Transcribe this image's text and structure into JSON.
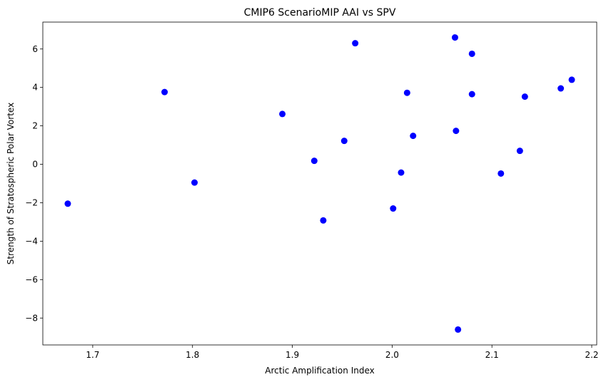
{
  "chart_data": {
    "type": "scatter",
    "title": "CMIP6 ScenarioMIP AAI vs SPV",
    "xlabel": "Arctic Amplification Index",
    "ylabel": "Strength of Stratospheric Polar Vortex",
    "xlim": [
      1.65,
      2.205
    ],
    "ylim": [
      -9.4,
      7.4
    ],
    "xticks": [
      1.7,
      1.8,
      1.9,
      2.0,
      2.1,
      2.2
    ],
    "xtick_labels": [
      "1.7",
      "1.8",
      "1.9",
      "2.0",
      "2.1",
      "2.2"
    ],
    "yticks": [
      -8,
      -6,
      -4,
      -2,
      0,
      2,
      4,
      6
    ],
    "ytick_labels": [
      "−8",
      "−6",
      "−4",
      "−2",
      "0",
      "2",
      "4",
      "6"
    ],
    "grid": false,
    "marker_color": "#0000ff",
    "points": [
      {
        "x": 1.675,
        "y": -2.05
      },
      {
        "x": 1.772,
        "y": 3.76
      },
      {
        "x": 1.802,
        "y": -0.95
      },
      {
        "x": 1.89,
        "y": 2.62
      },
      {
        "x": 1.922,
        "y": 0.18
      },
      {
        "x": 1.931,
        "y": -2.92
      },
      {
        "x": 1.952,
        "y": 1.22
      },
      {
        "x": 1.963,
        "y": 6.3
      },
      {
        "x": 2.001,
        "y": -2.3
      },
      {
        "x": 2.009,
        "y": -0.43
      },
      {
        "x": 2.015,
        "y": 3.72
      },
      {
        "x": 2.021,
        "y": 1.48
      },
      {
        "x": 2.063,
        "y": 6.6
      },
      {
        "x": 2.064,
        "y": 1.74
      },
      {
        "x": 2.066,
        "y": -8.6
      },
      {
        "x": 2.08,
        "y": 5.75
      },
      {
        "x": 2.08,
        "y": 3.65
      },
      {
        "x": 2.109,
        "y": -0.48
      },
      {
        "x": 2.128,
        "y": 0.7
      },
      {
        "x": 2.133,
        "y": 3.52
      },
      {
        "x": 2.169,
        "y": 3.95
      },
      {
        "x": 2.18,
        "y": 4.4
      }
    ]
  }
}
